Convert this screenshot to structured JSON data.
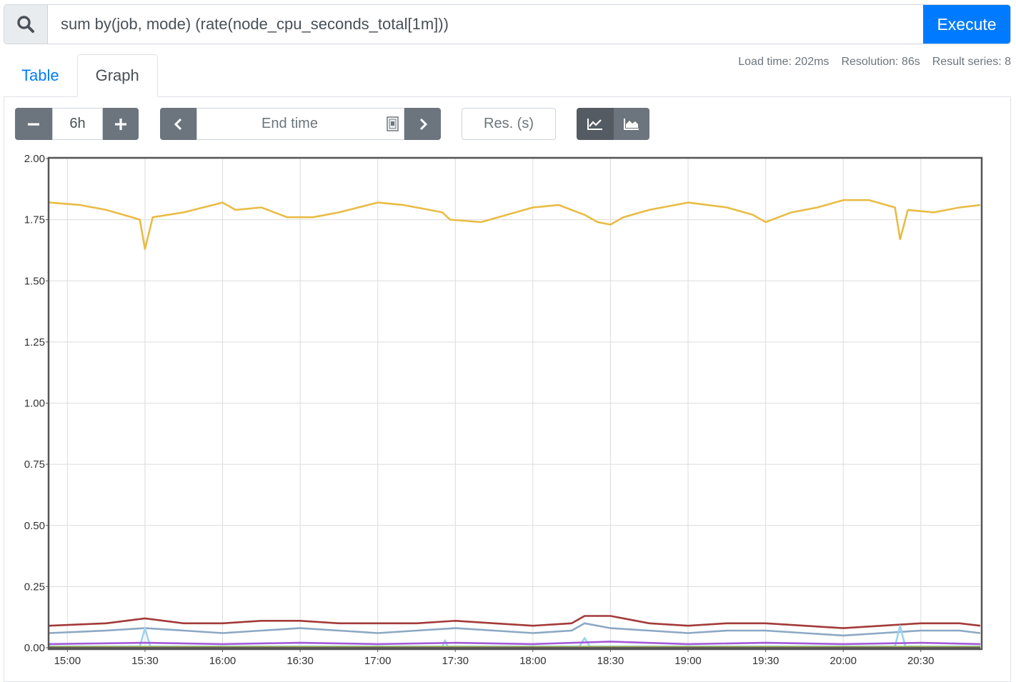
{
  "query": {
    "expression": "sum by(job, mode) (rate(node_cpu_seconds_total[1m]))",
    "execute_label": "Execute",
    "search_icon": "search-icon"
  },
  "tabs": [
    {
      "label": "Table",
      "active": false
    },
    {
      "label": "Graph",
      "active": true
    }
  ],
  "stats": {
    "load_time": "Load time: 202ms",
    "resolution": "Resolution: 86s",
    "result_series": "Result series: 8"
  },
  "controls": {
    "range_value": "6h",
    "end_time_placeholder": "End time",
    "resolution_placeholder": "Res. (s)",
    "icons": [
      "minus-icon",
      "plus-icon",
      "chevron-left-icon",
      "calendar-icon",
      "chevron-right-icon",
      "line-chart-icon",
      "area-chart-icon"
    ],
    "stacked": false
  },
  "chart_data": {
    "type": "line",
    "x_ticks": [
      "15:00",
      "15:30",
      "16:00",
      "16:30",
      "17:00",
      "17:30",
      "18:00",
      "18:30",
      "19:00",
      "19:30",
      "20:00",
      "20:30"
    ],
    "x_range": [
      "14:53",
      "20:53"
    ],
    "y_ticks": [
      "0.00",
      "0.25",
      "0.50",
      "0.75",
      "1.00",
      "1.25",
      "1.50",
      "1.75",
      "2.00"
    ],
    "ylim": [
      0,
      2
    ],
    "grid": true,
    "series": [
      {
        "color": "#e8bc44",
        "points": [
          [
            "14:53",
            1.82
          ],
          [
            "15:05",
            1.81
          ],
          [
            "15:15",
            1.79
          ],
          [
            "15:25",
            1.76
          ],
          [
            "15:28",
            1.75
          ],
          [
            "15:30",
            1.63
          ],
          [
            "15:33",
            1.76
          ],
          [
            "15:45",
            1.78
          ],
          [
            "16:00",
            1.82
          ],
          [
            "16:05",
            1.79
          ],
          [
            "16:15",
            1.8
          ],
          [
            "16:25",
            1.76
          ],
          [
            "16:35",
            1.76
          ],
          [
            "16:45",
            1.78
          ],
          [
            "17:00",
            1.82
          ],
          [
            "17:10",
            1.81
          ],
          [
            "17:20",
            1.79
          ],
          [
            "17:25",
            1.78
          ],
          [
            "17:28",
            1.75
          ],
          [
            "17:40",
            1.74
          ],
          [
            "17:50",
            1.77
          ],
          [
            "18:00",
            1.8
          ],
          [
            "18:10",
            1.81
          ],
          [
            "18:20",
            1.77
          ],
          [
            "18:25",
            1.74
          ],
          [
            "18:30",
            1.73
          ],
          [
            "18:35",
            1.76
          ],
          [
            "18:45",
            1.79
          ],
          [
            "19:00",
            1.82
          ],
          [
            "19:15",
            1.8
          ],
          [
            "19:25",
            1.77
          ],
          [
            "19:30",
            1.74
          ],
          [
            "19:40",
            1.78
          ],
          [
            "19:50",
            1.8
          ],
          [
            "20:00",
            1.83
          ],
          [
            "20:10",
            1.83
          ],
          [
            "20:20",
            1.8
          ],
          [
            "20:22",
            1.67
          ],
          [
            "20:25",
            1.79
          ],
          [
            "20:35",
            1.78
          ],
          [
            "20:45",
            1.8
          ],
          [
            "20:53",
            1.81
          ]
        ]
      },
      {
        "color": "#a33a3a",
        "points": [
          [
            "14:53",
            0.09
          ],
          [
            "15:15",
            0.1
          ],
          [
            "15:30",
            0.12
          ],
          [
            "15:45",
            0.1
          ],
          [
            "16:00",
            0.1
          ],
          [
            "16:15",
            0.11
          ],
          [
            "16:30",
            0.11
          ],
          [
            "16:45",
            0.1
          ],
          [
            "17:00",
            0.1
          ],
          [
            "17:15",
            0.1
          ],
          [
            "17:30",
            0.11
          ],
          [
            "17:45",
            0.1
          ],
          [
            "18:00",
            0.09
          ],
          [
            "18:15",
            0.1
          ],
          [
            "18:20",
            0.13
          ],
          [
            "18:30",
            0.13
          ],
          [
            "18:45",
            0.1
          ],
          [
            "19:00",
            0.09
          ],
          [
            "19:15",
            0.1
          ],
          [
            "19:30",
            0.1
          ],
          [
            "19:45",
            0.09
          ],
          [
            "20:00",
            0.08
          ],
          [
            "20:15",
            0.09
          ],
          [
            "20:30",
            0.1
          ],
          [
            "20:45",
            0.1
          ],
          [
            "20:53",
            0.09
          ]
        ]
      },
      {
        "color": "#8ca8c4",
        "points": [
          [
            "14:53",
            0.06
          ],
          [
            "15:15",
            0.07
          ],
          [
            "15:30",
            0.08
          ],
          [
            "15:45",
            0.07
          ],
          [
            "16:00",
            0.06
          ],
          [
            "16:15",
            0.07
          ],
          [
            "16:30",
            0.08
          ],
          [
            "16:45",
            0.07
          ],
          [
            "17:00",
            0.06
          ],
          [
            "17:15",
            0.07
          ],
          [
            "17:30",
            0.08
          ],
          [
            "17:45",
            0.07
          ],
          [
            "18:00",
            0.06
          ],
          [
            "18:15",
            0.07
          ],
          [
            "18:20",
            0.1
          ],
          [
            "18:30",
            0.08
          ],
          [
            "18:45",
            0.07
          ],
          [
            "19:00",
            0.06
          ],
          [
            "19:15",
            0.07
          ],
          [
            "19:30",
            0.07
          ],
          [
            "19:45",
            0.06
          ],
          [
            "20:00",
            0.05
          ],
          [
            "20:15",
            0.06
          ],
          [
            "20:30",
            0.07
          ],
          [
            "20:45",
            0.07
          ],
          [
            "20:53",
            0.06
          ]
        ]
      },
      {
        "color": "#9ed3ee",
        "points": [
          [
            "14:53",
            0.005
          ],
          [
            "15:28",
            0.005
          ],
          [
            "15:30",
            0.08
          ],
          [
            "15:32",
            0.005
          ],
          [
            "17:25",
            0.005
          ],
          [
            "17:26",
            0.03
          ],
          [
            "17:27",
            0.005
          ],
          [
            "18:18",
            0.005
          ],
          [
            "18:20",
            0.04
          ],
          [
            "18:22",
            0.005
          ],
          [
            "20:20",
            0.005
          ],
          [
            "20:22",
            0.09
          ],
          [
            "20:24",
            0.005
          ],
          [
            "20:53",
            0.005
          ]
        ]
      },
      {
        "color": "#a25ad8",
        "points": [
          [
            "14:53",
            0.015
          ],
          [
            "15:30",
            0.02
          ],
          [
            "16:00",
            0.015
          ],
          [
            "16:30",
            0.02
          ],
          [
            "17:00",
            0.015
          ],
          [
            "17:30",
            0.02
          ],
          [
            "18:00",
            0.015
          ],
          [
            "18:30",
            0.025
          ],
          [
            "19:00",
            0.015
          ],
          [
            "19:30",
            0.02
          ],
          [
            "20:00",
            0.015
          ],
          [
            "20:30",
            0.02
          ],
          [
            "20:53",
            0.015
          ]
        ]
      },
      {
        "color": "#7fc97f",
        "points": [
          [
            "14:53",
            0.004
          ],
          [
            "20:53",
            0.004
          ]
        ]
      },
      {
        "color": "#c9b54a",
        "points": [
          [
            "14:53",
            0.002
          ],
          [
            "20:53",
            0.002
          ]
        ]
      },
      {
        "color": "#5c5c5c",
        "points": [
          [
            "14:53",
            0.0
          ],
          [
            "20:53",
            0.0
          ]
        ]
      }
    ]
  }
}
